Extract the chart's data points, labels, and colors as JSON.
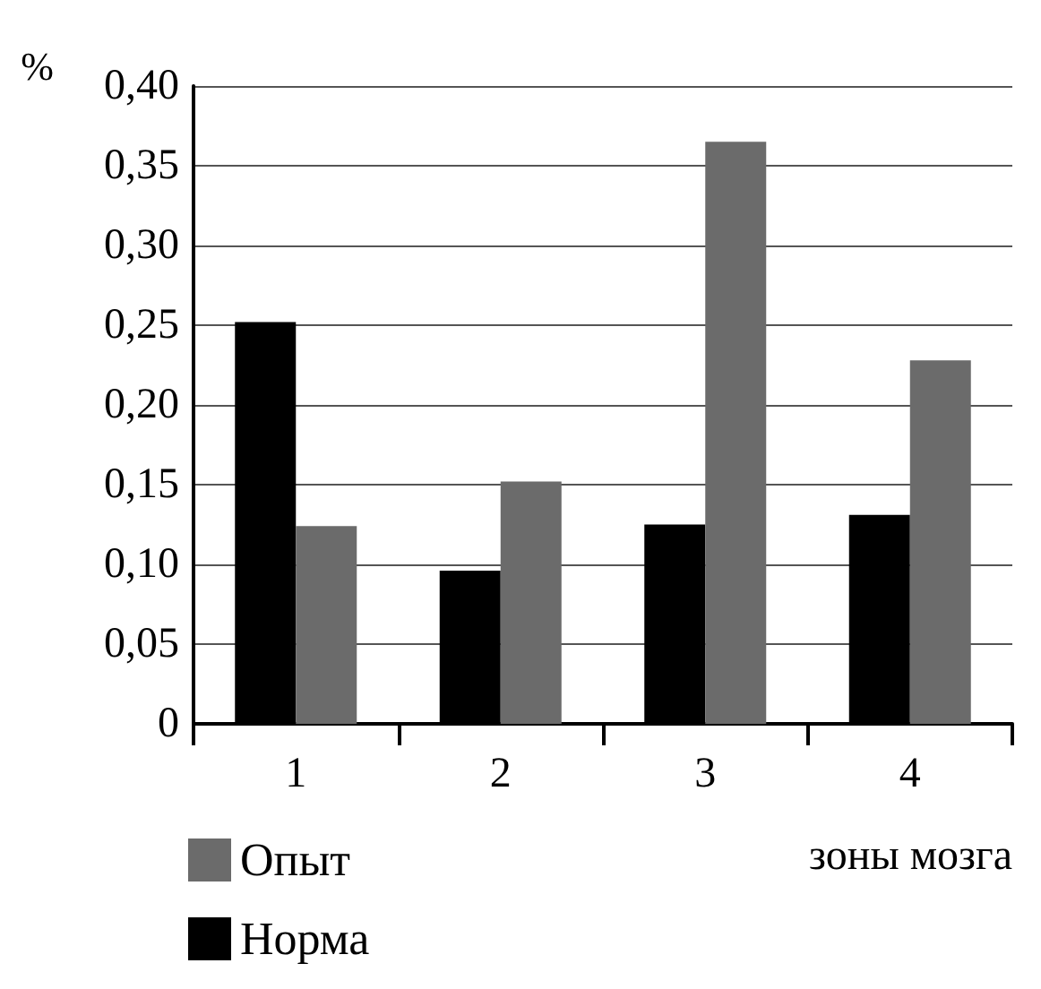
{
  "chart_data": {
    "type": "bar",
    "ylabel": "%",
    "xlabel": "зоны мозга",
    "categories": [
      "1",
      "2",
      "3",
      "4"
    ],
    "series": [
      {
        "name": "Норма",
        "color": "#000000",
        "values": [
          0.252,
          0.096,
          0.125,
          0.131
        ]
      },
      {
        "name": "Опыт",
        "color": "#6b6b6b",
        "values": [
          0.124,
          0.152,
          0.365,
          0.228
        ]
      }
    ],
    "ylim": [
      0,
      0.4
    ],
    "yticks": [
      0,
      {
        "value": 0.05,
        "label": "0,05"
      },
      {
        "value": 0.1,
        "label": "0,10"
      },
      {
        "value": 0.15,
        "label": "0,15"
      },
      {
        "value": 0.2,
        "label": "0,20"
      },
      {
        "value": 0.25,
        "label": "0,25"
      },
      {
        "value": 0.3,
        "label": "0,30"
      },
      {
        "value": 0.35,
        "label": "0,35"
      },
      {
        "value": 0.4,
        "label": "0,40"
      }
    ],
    "grid": "y",
    "legend": "bottom left"
  }
}
